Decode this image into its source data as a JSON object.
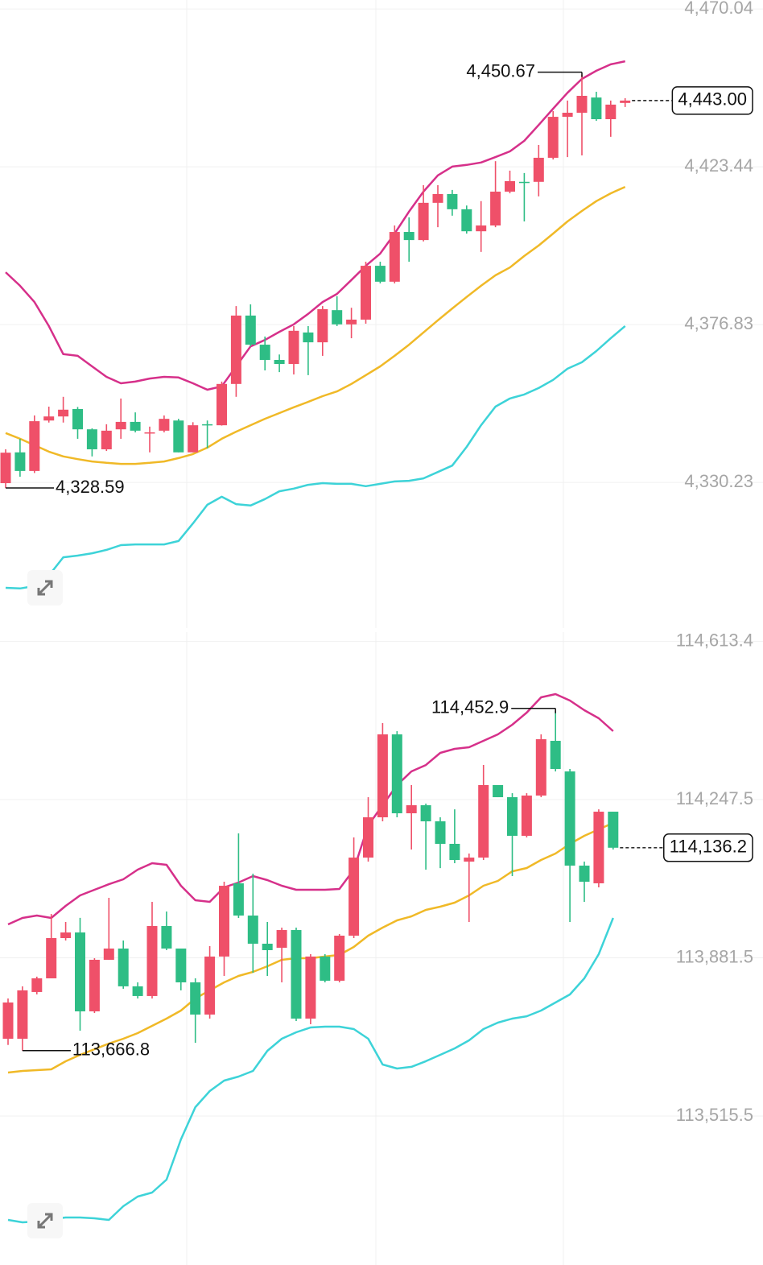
{
  "chart_data": [
    {
      "type": "candlestick",
      "ylim": [
        4287.2,
        4472.7
      ],
      "yticks": [
        {
          "value": 4470.04,
          "label": "4,470.04"
        },
        {
          "value": 4423.44,
          "label": "4,423.44"
        },
        {
          "value": 4376.83,
          "label": "4,376.83"
        },
        {
          "value": 4330.23,
          "label": "4,330.23"
        }
      ],
      "grid": true,
      "up_color": "#ef5069",
      "down_color": "#2ebd85",
      "ohlc": [
        [
          4330,
          4340,
          4328.59,
          4339
        ],
        [
          4339.1,
          4343.1,
          4331.9,
          4333.6
        ],
        [
          4333.6,
          4350,
          4333,
          4348.3
        ],
        [
          4348.5,
          4352.6,
          4347.9,
          4349.7
        ],
        [
          4349.7,
          4355.5,
          4347.9,
          4351.7
        ],
        [
          4351.9,
          4352.5,
          4343.1,
          4345.9
        ],
        [
          4345.9,
          4346.2,
          4337.9,
          4340.0
        ],
        [
          4340.0,
          4347.4,
          4339.5,
          4345.5
        ],
        [
          4345.9,
          4355.0,
          4343.1,
          4348.1
        ],
        [
          4348.1,
          4350.9,
          4345.0,
          4345.5
        ],
        [
          4344.8,
          4346.7,
          4339.1,
          4345.0
        ],
        [
          4345.5,
          4350.0,
          4345.0,
          4349.0
        ],
        [
          4348.5,
          4349.0,
          4339.1,
          4339.1
        ],
        [
          4339.1,
          4348.0,
          4339.1,
          4347.1
        ],
        [
          4347.4,
          4348.5,
          4340.3,
          4347.2
        ],
        [
          4347.1,
          4360,
          4347,
          4359.3
        ],
        [
          4359.3,
          4382.3,
          4355.5,
          4379.5
        ],
        [
          4379.5,
          4382.8,
          4370.4,
          4370.9
        ],
        [
          4370.9,
          4373.3,
          4363.3,
          4366.4
        ],
        [
          4366.4,
          4368,
          4362.8,
          4365.2
        ],
        [
          4365.2,
          4376.4,
          4362.1,
          4375.0
        ],
        [
          4374.5,
          4376.4,
          4361.9,
          4371.6
        ],
        [
          4371.6,
          4382.3,
          4367.6,
          4381.4
        ],
        [
          4381.1,
          4385.2,
          4376.4,
          4376.9
        ],
        [
          4376.9,
          4381.8,
          4372.8,
          4378.3
        ],
        [
          4378.3,
          4395.4,
          4377.1,
          4394.2
        ],
        [
          4394.2,
          4395.4,
          4389.0,
          4389.5
        ],
        [
          4389.5,
          4406.1,
          4389.0,
          4404.2
        ],
        [
          4404.2,
          4408.5,
          4395.4,
          4401.8
        ],
        [
          4401.8,
          4418.0,
          4401.4,
          4412.8
        ],
        [
          4412.8,
          4418.0,
          4405.6,
          4415.4
        ],
        [
          4415.4,
          4416.6,
          4409.0,
          4410.9
        ],
        [
          4410.9,
          4412.0,
          4403.7,
          4404.4
        ],
        [
          4404.4,
          4413.3,
          4398.3,
          4406.1
        ],
        [
          4406.1,
          4425.1,
          4405.6,
          4416.1
        ],
        [
          4416.1,
          4422.3,
          4415.6,
          4419.2
        ],
        [
          4419.0,
          4421.6,
          4407.3,
          4418.7
        ],
        [
          4419.0,
          4429.9,
          4414.7,
          4426.1
        ],
        [
          4426.1,
          4439.9,
          4425.6,
          4438.2
        ],
        [
          4438.2,
          4443.0,
          4426.3,
          4439.4
        ],
        [
          4439.4,
          4450.67,
          4426.8,
          4444.4
        ],
        [
          4443.9,
          4445.6,
          4437.0,
          4437.5
        ],
        [
          4437.5,
          4443.0,
          4432.3,
          4441.8
        ],
        [
          4442.3,
          4443.7,
          4441.1,
          4443.0
        ]
      ],
      "bands": [
        {
          "color": "#d6308a",
          "values": [
            4392.3,
            4388.3,
            4383.5,
            4376.4,
            4368.1,
            4367.6,
            4364.5,
            4361.4,
            4359.5,
            4360.0,
            4360.9,
            4361.4,
            4361.2,
            4359.5,
            4357.6,
            4358.6,
            4364.5,
            4370.4,
            4372.3,
            4374.7,
            4376.9,
            4380.0,
            4383.5,
            4385.9,
            4390.0,
            4394.2,
            4397.8,
            4403.7,
            4410.2,
            4416.1,
            4420.9,
            4423.5,
            4424.0,
            4424.7,
            4426.3,
            4428.0,
            4431.1,
            4435.8,
            4440.6,
            4445.3,
            4449.4,
            4451.8,
            4453.7,
            4454.6
          ]
        },
        {
          "color": "#f0b927",
          "values": [
            4344.8,
            4343.1,
            4341.2,
            4339.3,
            4337.9,
            4337.1,
            4336.4,
            4336.0,
            4335.7,
            4335.7,
            4336.0,
            4336.4,
            4337.4,
            4338.6,
            4340.5,
            4343.1,
            4345.2,
            4347.1,
            4349.0,
            4350.7,
            4352.4,
            4354.0,
            4355.7,
            4357.1,
            4359.3,
            4361.9,
            4364.5,
            4367.6,
            4370.9,
            4374.5,
            4378.1,
            4381.6,
            4385.0,
            4388.3,
            4391.4,
            4393.7,
            4397.1,
            4400.2,
            4403.7,
            4407.3,
            4410.4,
            4413.3,
            4415.6,
            4417.5
          ]
        },
        {
          "color": "#3dd3d8",
          "values": [
            4299.1,
            4298.9,
            4299.6,
            4302.7,
            4308.1,
            4308.6,
            4309.3,
            4310.3,
            4311.7,
            4311.9,
            4311.9,
            4311.9,
            4312.9,
            4318.1,
            4323.6,
            4326.0,
            4323.8,
            4323.4,
            4325.3,
            4327.6,
            4328.4,
            4329.5,
            4330.0,
            4329.8,
            4329.8,
            4329.1,
            4329.8,
            4330.5,
            4330.7,
            4331.4,
            4333.3,
            4335.2,
            4340.7,
            4347.1,
            4352.6,
            4355.0,
            4356.2,
            4358.1,
            4360.5,
            4363.8,
            4365.7,
            4369.0,
            4372.8,
            4376.4
          ]
        }
      ],
      "high_label": "4,450.67",
      "low_label": "4,328.59",
      "last_label": "4,443.00"
    },
    {
      "type": "candlestick",
      "ylim": [
        113171.0,
        114635.0
      ],
      "yticks": [
        {
          "value": 114613.4,
          "label": "114,613.4"
        },
        {
          "value": 114247.5,
          "label": "114,247.5"
        },
        {
          "value": 113881.5,
          "label": "113,881.5"
        },
        {
          "value": 113515.5,
          "label": "113,515.5"
        }
      ],
      "grid": true,
      "up_color": "#ef5069",
      "down_color": "#2ebd85",
      "ohlc": [
        [
          113694.4,
          113787.5,
          113680,
          113778.2
        ],
        [
          113694.4,
          113815.6,
          113666.8,
          113806.3
        ],
        [
          113802.5,
          113838,
          113797,
          113834.1
        ],
        [
          113834.1,
          113983,
          113834.1,
          113927.2
        ],
        [
          113927.2,
          113964.5,
          113921.6,
          113940.2
        ],
        [
          113940.2,
          113974,
          113713,
          113757.7
        ],
        [
          113757.7,
          113880.6,
          113754,
          113877.0
        ],
        [
          113877.0,
          114020.3,
          113877,
          113903.0
        ],
        [
          113903.0,
          113921.6,
          113810,
          113815.6
        ],
        [
          113815.6,
          113824.8,
          113787.5,
          113793.2
        ],
        [
          113793.2,
          114011,
          113787.5,
          113955.1
        ],
        [
          113955.1,
          113988.7,
          113899.3,
          113903.0
        ],
        [
          113903.0,
          113903,
          113806.3,
          113824.8
        ],
        [
          113824.8,
          113834.1,
          113685,
          113750.3
        ],
        [
          113750.3,
          113908.6,
          113741,
          113884.5
        ],
        [
          113884.5,
          114057.6,
          113839.7,
          114048.2
        ],
        [
          114053.9,
          114169.4,
          113973.8,
          113979.3
        ],
        [
          113979.3,
          114076.2,
          113847,
          113914.2
        ],
        [
          113914.2,
          113964.5,
          113839.7,
          113899.3
        ],
        [
          113904.8,
          113951.4,
          113824.8,
          113945.8
        ],
        [
          113945.8,
          113951.4,
          113735.3,
          113741.0
        ],
        [
          113741.0,
          113890.0,
          113728,
          113884.5
        ],
        [
          113884.5,
          113890,
          113824.8,
          113828.6
        ],
        [
          113828.6,
          113936.5,
          113824.8,
          113932.8
        ],
        [
          113932.8,
          114160,
          113927.2,
          114113.4
        ],
        [
          114113.4,
          114253.1,
          114104.1,
          114206.6
        ],
        [
          114206.6,
          114424.5,
          114197.3,
          114398.4
        ],
        [
          114398.4,
          114405.8,
          114206.6,
          114215.9
        ],
        [
          114215.9,
          114281.1,
          114132.1,
          114234.5
        ],
        [
          114234.5,
          114238.3,
          114085.5,
          114197.3
        ],
        [
          114197.3,
          114206.6,
          114089,
          114145.2
        ],
        [
          114145.2,
          114225,
          114100.4,
          114107.9
        ],
        [
          114104.1,
          114122.8,
          113964.5,
          114113.4
        ],
        [
          114113.4,
          114327.7,
          114107.9,
          114281.1
        ],
        [
          114281.1,
          114281.1,
          114253.1,
          114253.1
        ],
        [
          114253.1,
          114262.4,
          114070.6,
          114163.8
        ],
        [
          114163.8,
          114262.4,
          114160,
          114256.9
        ],
        [
          114256.9,
          114398.4,
          114253.1,
          114387.2
        ],
        [
          114383.5,
          114452.9,
          114312.7,
          114318.4
        ],
        [
          114312.7,
          114318.4,
          113964.5,
          114094.8
        ],
        [
          114094.8,
          114104.1,
          114011.0,
          114057.6
        ],
        [
          114053.9,
          114225,
          114044.6,
          114219.6
        ],
        [
          114219.6,
          114219.6,
          114132.1,
          114136.2
        ]
      ],
      "bands": [
        {
          "color": "#d6308a",
          "values": [
            113958.9,
            113973.8,
            113979.3,
            113973.8,
            114001.8,
            114025.9,
            114038.9,
            114051.9,
            114063.2,
            114085.5,
            114100.4,
            114096.7,
            114048.2,
            114014.7,
            114011.0,
            114044.6,
            114055.8,
            114070.6,
            114061.4,
            114048.2,
            114038.9,
            114038.9,
            114038.9,
            114040.8,
            114085.5,
            114187.9,
            114234.5,
            114281.1,
            114312.7,
            114327.5,
            114355.6,
            114364.9,
            114368.6,
            114383.5,
            114398.4,
            114420.8,
            114448.7,
            114484.1,
            114491.5,
            114476.6,
            114454.3,
            114435.7,
            114405.9
          ]
        },
        {
          "color": "#f0b927",
          "values": [
            113616.1,
            113619.9,
            113621.7,
            113623.6,
            113642.2,
            113657.1,
            113670.1,
            113683.2,
            113694.4,
            113707.4,
            113724.2,
            113741.0,
            113759.6,
            113787.5,
            113806.3,
            113824.8,
            113839.7,
            113849.0,
            113862.0,
            113877.0,
            113880.7,
            113880.7,
            113884.5,
            113888.2,
            113906.7,
            113932.8,
            113951.4,
            113968.2,
            113977.5,
            113992.4,
            113999.8,
            114009.1,
            114025.9,
            114048.2,
            114059.5,
            114081.7,
            114089.3,
            114107.9,
            114122.8,
            114145.2,
            114163.8,
            114178.6,
            114193.6
          ]
        },
        {
          "color": "#3dd3d8",
          "values": [
            113275.3,
            113269.7,
            113271.6,
            113277.1,
            113280.9,
            113280.9,
            113279.0,
            113275.3,
            113307.0,
            113329.3,
            113338.6,
            113368.4,
            113461.6,
            113536.1,
            113573.4,
            113597.6,
            113606.9,
            113619.9,
            113666.4,
            113694.4,
            113709.3,
            113720.4,
            113722.3,
            113722.3,
            113716.8,
            113694.4,
            113634.8,
            113625.5,
            113629.4,
            113642.4,
            113657.1,
            113672.1,
            113690.6,
            113716.8,
            113731.6,
            113741.0,
            113746.4,
            113759.6,
            113778.2,
            113796.9,
            113834.1,
            113890.0,
            113973.8
          ]
        }
      ],
      "high_label": "114,452.9",
      "low_label": "113,666.8",
      "last_label": "114,136.2"
    }
  ]
}
